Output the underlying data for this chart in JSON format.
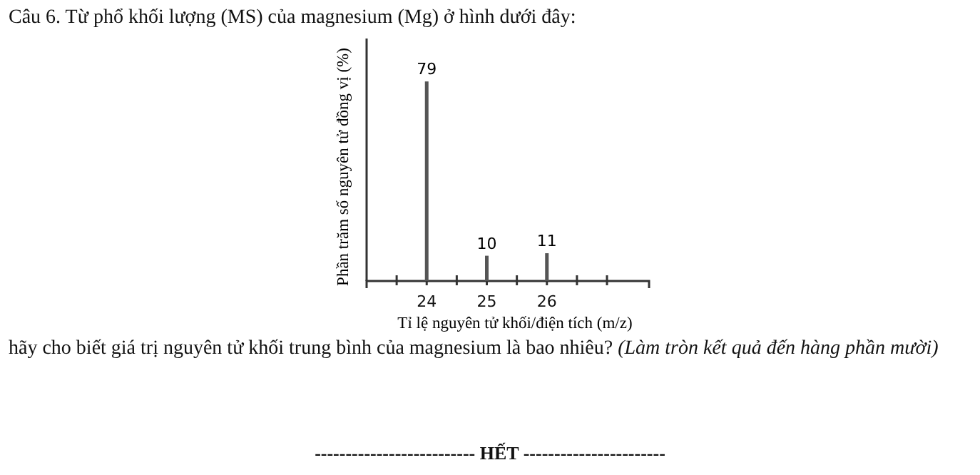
{
  "chart_data": {
    "type": "bar",
    "title": "Câu 6. Từ phổ khối lượng (MS) của magnesium (Mg) ở hình dưới đây:",
    "xlabel": "Tỉ lệ nguyên tử khối/điện tích (m/z)",
    "ylabel": "Phần trăm số nguyên tử đồng vị (%)",
    "x": [
      24,
      25,
      26
    ],
    "values": [
      79,
      10,
      11
    ],
    "color": "#555555",
    "data_labels": true,
    "xlim": [
      23,
      27.7
    ],
    "xticks": [
      {
        "value": 23.5,
        "label": null
      },
      24,
      {
        "value": 24.5,
        "label": null
      },
      25,
      {
        "value": 25.5,
        "label": null
      },
      26,
      {
        "value": 26.5,
        "label": null
      },
      {
        "value": 27,
        "label": null
      }
    ],
    "ylim": [
      0,
      96
    ],
    "tick_labels": "x",
    "annotations": [
      "hãy cho biết giá trị nguyên tử khối trung bình của magnesium là bao nhiêu?",
      "(Làm tròn kết quả đến hàng phần mười)",
      "-------------------------- HẾT -----------------------"
    ]
  }
}
